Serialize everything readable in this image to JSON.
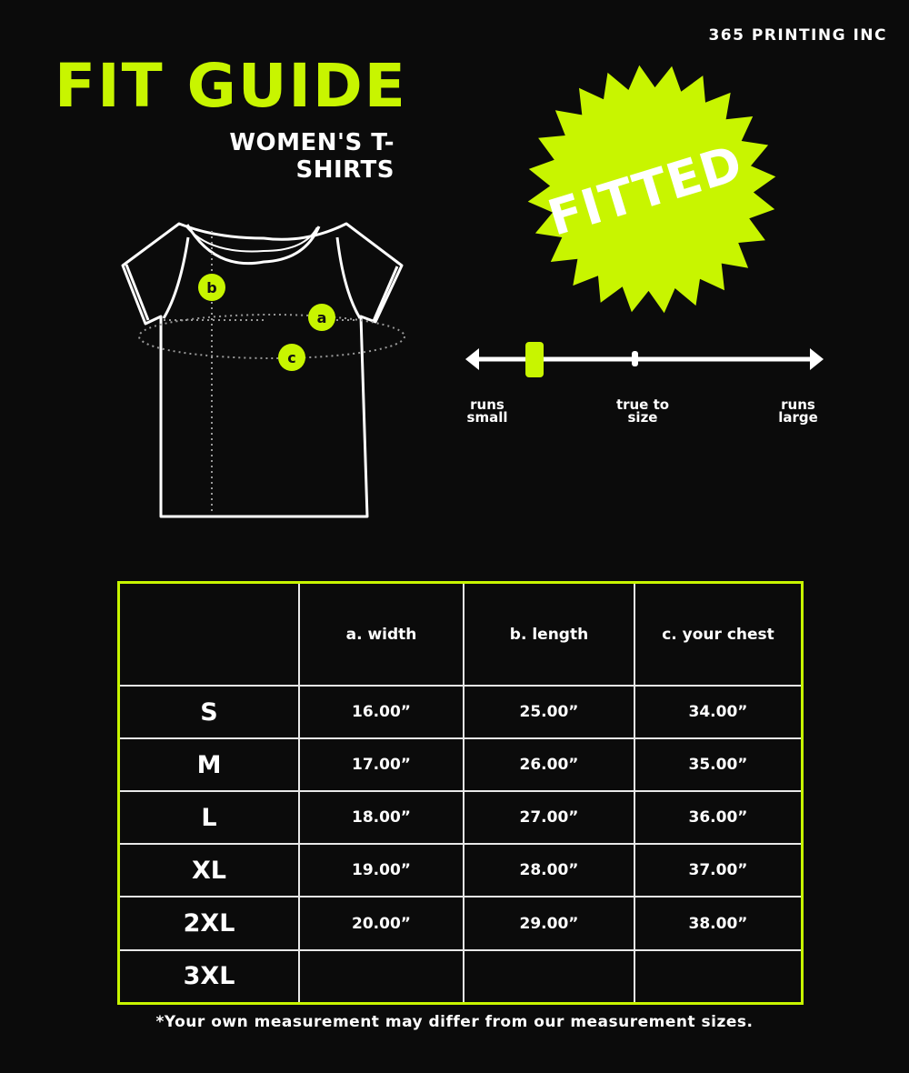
{
  "brand": "365 PRINTING INC",
  "title": "FIT GUIDE",
  "subtitle": "WOMEN'S T-SHIRTS",
  "badge": {
    "label": "FITTED",
    "color": "#c8f500"
  },
  "diagram": {
    "markers": [
      "a",
      "b",
      "c"
    ]
  },
  "fit_scale": {
    "labels": {
      "small": [
        "runs",
        "small"
      ],
      "true": [
        "true to",
        "size"
      ],
      "large": [
        "runs",
        "large"
      ]
    },
    "level": 0.18
  },
  "table": {
    "headers": [
      "",
      "a. width",
      "b. length",
      "c. your chest"
    ],
    "rows": [
      [
        "S",
        "16.00”",
        "25.00”",
        "34.00”"
      ],
      [
        "M",
        "17.00”",
        "26.00”",
        "35.00”"
      ],
      [
        "L",
        "18.00”",
        "27.00”",
        "36.00”"
      ],
      [
        "XL",
        "19.00”",
        "28.00”",
        "37.00”"
      ],
      [
        "2XL",
        "20.00”",
        "29.00”",
        "38.00”"
      ],
      [
        "3XL",
        "",
        "",
        ""
      ]
    ]
  },
  "note": "*Your own measurement may differ from our measurement sizes.",
  "colors": {
    "accent": "#c8f500",
    "background": "#0b0b0b"
  }
}
